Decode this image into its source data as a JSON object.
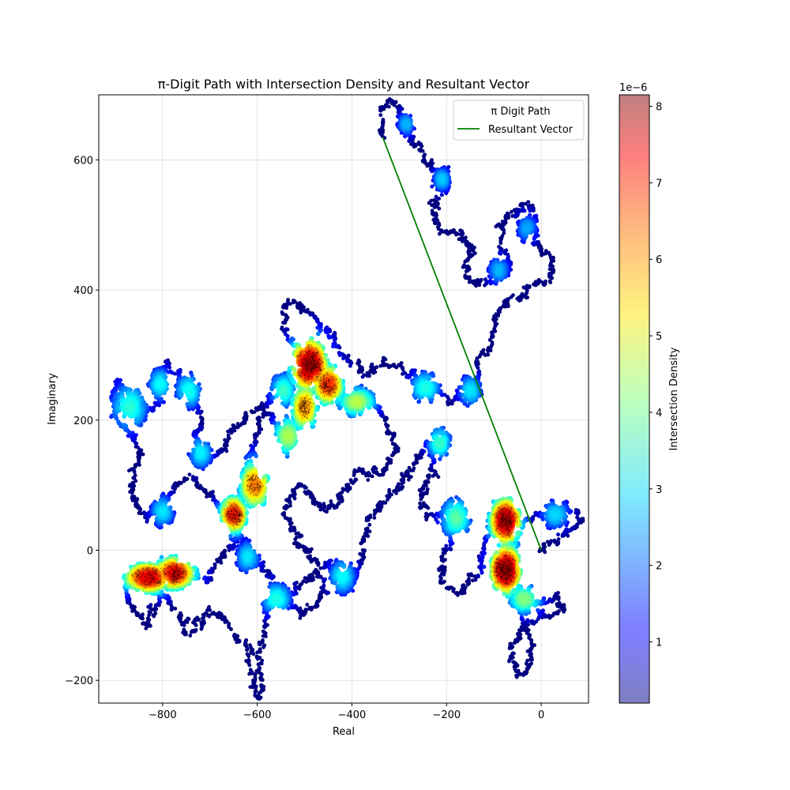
{
  "chart_data": {
    "type": "scatter",
    "title": "π-Digit Path with Intersection Density and Resultant Vector",
    "xlabel": "Real",
    "ylabel": "Imaginary",
    "xlim": [
      -935,
      100
    ],
    "ylim": [
      -235,
      700
    ],
    "xticks": [
      -800,
      -600,
      -400,
      -200,
      0
    ],
    "xtick_labels": [
      "−800",
      "−600",
      "−400",
      "−200",
      "0"
    ],
    "yticks": [
      -200,
      0,
      200,
      400,
      600
    ],
    "ytick_labels": [
      "−200",
      "0",
      "200",
      "400",
      "600"
    ],
    "grid": true,
    "legend": {
      "placement": "top-right",
      "entries": [
        "π Digit Path",
        "Resultant Vector"
      ]
    },
    "colorbar": {
      "label": "Intersection Density",
      "multiplier": "1e−6",
      "range": [
        0.2,
        8.15
      ],
      "ticks": [
        1,
        2,
        3,
        4,
        5,
        6,
        7,
        8
      ],
      "tick_labels": [
        "1",
        "2",
        "3",
        "4",
        "5",
        "6",
        "7",
        "8"
      ],
      "colormap": "jet"
    },
    "resultant_vector": {
      "name": "Resultant Vector",
      "color": "#008000",
      "start": [
        -335,
        635
      ],
      "end": [
        0,
        0
      ]
    },
    "path": {
      "name": "π Digit Path",
      "start": [
        -335,
        635
      ],
      "end": [
        0,
        0
      ],
      "waypoints": [
        [
          -335,
          635
        ],
        [
          -340,
          678
        ],
        [
          -310,
          690
        ],
        [
          -295,
          650
        ],
        [
          -270,
          632
        ],
        [
          -250,
          610
        ],
        [
          -230,
          585
        ],
        [
          -205,
          570
        ],
        [
          -210,
          545
        ],
        [
          -235,
          530
        ],
        [
          -225,
          505
        ],
        [
          -190,
          488
        ],
        [
          -155,
          470
        ],
        [
          -140,
          455
        ],
        [
          -160,
          435
        ],
        [
          -150,
          410
        ],
        [
          -120,
          412
        ],
        [
          -85,
          420
        ],
        [
          -62,
          440
        ],
        [
          -80,
          465
        ],
        [
          -90,
          500
        ],
        [
          -58,
          520
        ],
        [
          -28,
          530
        ],
        [
          -12,
          510
        ],
        [
          -15,
          470
        ],
        [
          15,
          455
        ],
        [
          25,
          432
        ],
        [
          5,
          415
        ],
        [
          -25,
          405
        ],
        [
          -60,
          390
        ],
        [
          -75,
          380
        ],
        [
          -95,
          360
        ],
        [
          -105,
          335
        ],
        [
          -120,
          305
        ],
        [
          -135,
          280
        ],
        [
          -140,
          255
        ],
        [
          -165,
          240
        ],
        [
          -190,
          228
        ],
        [
          -215,
          240
        ],
        [
          -245,
          250
        ],
        [
          -270,
          268
        ],
        [
          -300,
          285
        ],
        [
          -330,
          292
        ],
        [
          -355,
          280
        ],
        [
          -375,
          268
        ],
        [
          -400,
          285
        ],
        [
          -425,
          310
        ],
        [
          -445,
          330
        ],
        [
          -470,
          345
        ],
        [
          -495,
          365
        ],
        [
          -530,
          385
        ],
        [
          -545,
          365
        ],
        [
          -540,
          335
        ],
        [
          -515,
          310
        ],
        [
          -490,
          295
        ],
        [
          -465,
          280
        ],
        [
          -445,
          262
        ],
        [
          -430,
          248
        ],
        [
          -410,
          232
        ],
        [
          -385,
          224
        ],
        [
          -355,
          228
        ],
        [
          -335,
          210
        ],
        [
          -320,
          185
        ],
        [
          -310,
          160
        ],
        [
          -325,
          135
        ],
        [
          -345,
          118
        ],
        [
          -370,
          112
        ],
        [
          -390,
          122
        ],
        [
          -410,
          98
        ],
        [
          -425,
          72
        ],
        [
          -455,
          60
        ],
        [
          -485,
          80
        ],
        [
          -505,
          100
        ],
        [
          -525,
          85
        ],
        [
          -540,
          60
        ],
        [
          -530,
          30
        ],
        [
          -510,
          10
        ],
        [
          -490,
          -10
        ],
        [
          -470,
          -35
        ],
        [
          -455,
          -60
        ],
        [
          -470,
          -85
        ],
        [
          -500,
          -95
        ],
        [
          -530,
          -80
        ],
        [
          -555,
          -60
        ],
        [
          -575,
          -80
        ],
        [
          -585,
          -110
        ],
        [
          -590,
          -145
        ],
        [
          -595,
          -180
        ],
        [
          -590,
          -215
        ],
        [
          -600,
          -228
        ],
        [
          -605,
          -190
        ],
        [
          -615,
          -160
        ],
        [
          -635,
          -140
        ],
        [
          -655,
          -120
        ],
        [
          -675,
          -100
        ],
        [
          -700,
          -90
        ],
        [
          -720,
          -110
        ],
        [
          -745,
          -128
        ],
        [
          -760,
          -110
        ],
        [
          -770,
          -90
        ],
        [
          -790,
          -75
        ],
        [
          -810,
          -65
        ],
        [
          -830,
          -60
        ],
        [
          -850,
          -50
        ],
        [
          -870,
          -40
        ],
        [
          -880,
          -55
        ],
        [
          -860,
          -95
        ],
        [
          -835,
          -115
        ],
        [
          -820,
          -95
        ],
        [
          -800,
          -60
        ],
        [
          -775,
          -40
        ],
        [
          -745,
          -30
        ],
        [
          -720,
          -40
        ],
        [
          -700,
          -35
        ],
        [
          -680,
          -18
        ],
        [
          -660,
          5
        ],
        [
          -640,
          30
        ],
        [
          -660,
          55
        ],
        [
          -680,
          70
        ],
        [
          -700,
          85
        ],
        [
          -720,
          98
        ],
        [
          -745,
          110
        ],
        [
          -770,
          100
        ],
        [
          -790,
          80
        ],
        [
          -810,
          60
        ],
        [
          -835,
          48
        ],
        [
          -855,
          70
        ],
        [
          -865,
          100
        ],
        [
          -860,
          125
        ],
        [
          -845,
          150
        ],
        [
          -860,
          175
        ],
        [
          -880,
          195
        ],
        [
          -900,
          215
        ],
        [
          -905,
          240
        ],
        [
          -890,
          262
        ],
        [
          -870,
          250
        ],
        [
          -850,
          230
        ],
        [
          -830,
          215
        ],
        [
          -805,
          228
        ],
        [
          -795,
          255
        ],
        [
          -810,
          278
        ],
        [
          -790,
          290
        ],
        [
          -765,
          268
        ],
        [
          -745,
          245
        ],
        [
          -730,
          225
        ],
        [
          -715,
          200
        ],
        [
          -735,
          175
        ],
        [
          -720,
          150
        ],
        [
          -700,
          140
        ],
        [
          -680,
          150
        ],
        [
          -665,
          170
        ],
        [
          -645,
          185
        ],
        [
          -625,
          200
        ],
        [
          -605,
          215
        ],
        [
          -585,
          225
        ],
        [
          -570,
          210
        ],
        [
          -560,
          190
        ],
        [
          -540,
          175
        ],
        [
          -525,
          165
        ],
        [
          -510,
          190
        ],
        [
          -495,
          215
        ],
        [
          -490,
          240
        ],
        [
          -500,
          260
        ],
        [
          -520,
          275
        ],
        [
          -540,
          260
        ],
        [
          -555,
          240
        ],
        [
          -575,
          225
        ],
        [
          -590,
          205
        ],
        [
          -600,
          180
        ],
        [
          -610,
          155
        ],
        [
          -620,
          130
        ],
        [
          -625,
          105
        ],
        [
          -635,
          80
        ],
        [
          -645,
          60
        ],
        [
          -655,
          40
        ],
        [
          -640,
          20
        ],
        [
          -615,
          0
        ],
        [
          -595,
          -20
        ],
        [
          -575,
          -40
        ],
        [
          -560,
          -60
        ],
        [
          -540,
          -75
        ],
        [
          -515,
          -60
        ],
        [
          -495,
          -45
        ],
        [
          -470,
          -30
        ],
        [
          -445,
          -20
        ],
        [
          -425,
          -40
        ],
        [
          -410,
          -60
        ],
        [
          -395,
          -45
        ],
        [
          -385,
          -20
        ],
        [
          -380,
          5
        ],
        [
          -370,
          30
        ],
        [
          -355,
          50
        ],
        [
          -340,
          70
        ],
        [
          -320,
          85
        ],
        [
          -300,
          95
        ],
        [
          -285,
          110
        ],
        [
          -270,
          130
        ],
        [
          -250,
          150
        ],
        [
          -235,
          165
        ],
        [
          -225,
          140
        ],
        [
          -230,
          115
        ],
        [
          -245,
          95
        ],
        [
          -255,
          75
        ],
        [
          -240,
          60
        ],
        [
          -220,
          55
        ],
        [
          -195,
          60
        ],
        [
          -180,
          40
        ],
        [
          -190,
          15
        ],
        [
          -205,
          -5
        ],
        [
          -215,
          -30
        ],
        [
          -200,
          -55
        ],
        [
          -180,
          -70
        ],
        [
          -160,
          -60
        ],
        [
          -140,
          -40
        ],
        [
          -130,
          -15
        ],
        [
          -120,
          10
        ],
        [
          -110,
          35
        ],
        [
          -100,
          60
        ],
        [
          -90,
          75
        ],
        [
          -80,
          60
        ],
        [
          -72,
          40
        ],
        [
          -66,
          20
        ],
        [
          -72,
          0
        ],
        [
          -80,
          -20
        ],
        [
          -85,
          -40
        ],
        [
          -75,
          -60
        ],
        [
          -55,
          -72
        ],
        [
          -35,
          -80
        ],
        [
          -10,
          -85
        ],
        [
          10,
          -80
        ],
        [
          30,
          -70
        ],
        [
          45,
          -85
        ],
        [
          30,
          -100
        ],
        [
          5,
          -100
        ],
        [
          -20,
          -110
        ],
        [
          -45,
          -125
        ],
        [
          -60,
          -145
        ],
        [
          -65,
          -170
        ],
        [
          -50,
          -195
        ],
        [
          -30,
          -180
        ],
        [
          -25,
          -150
        ],
        [
          -30,
          -120
        ],
        [
          -40,
          -95
        ],
        [
          -55,
          -80
        ],
        [
          -65,
          -55
        ],
        [
          -70,
          -30
        ],
        [
          -62,
          -5
        ],
        [
          -50,
          15
        ],
        [
          -35,
          30
        ],
        [
          -20,
          45
        ],
        [
          0,
          55
        ],
        [
          20,
          60
        ],
        [
          45,
          65
        ],
        [
          70,
          60
        ],
        [
          85,
          50
        ],
        [
          75,
          35
        ],
        [
          55,
          30
        ],
        [
          35,
          20
        ],
        [
          15,
          10
        ],
        [
          0,
          0
        ]
      ],
      "density_peaks": [
        {
          "x": -490,
          "y": 285,
          "sx": 30,
          "sy": 32,
          "v": 8.0
        },
        {
          "x": -450,
          "y": 255,
          "sx": 25,
          "sy": 25,
          "v": 6.8
        },
        {
          "x": -500,
          "y": 220,
          "sx": 22,
          "sy": 30,
          "v": 6.0
        },
        {
          "x": -535,
          "y": 175,
          "sx": 25,
          "sy": 25,
          "v": 4.5
        },
        {
          "x": -390,
          "y": 228,
          "sx": 32,
          "sy": 18,
          "v": 4.6
        },
        {
          "x": -830,
          "y": -42,
          "sx": 40,
          "sy": 18,
          "v": 7.4
        },
        {
          "x": -775,
          "y": -35,
          "sx": 35,
          "sy": 20,
          "v": 7.2
        },
        {
          "x": -650,
          "y": 55,
          "sx": 22,
          "sy": 22,
          "v": 7.0
        },
        {
          "x": -605,
          "y": 100,
          "sx": 25,
          "sy": 30,
          "v": 6.2
        },
        {
          "x": -75,
          "y": 45,
          "sx": 25,
          "sy": 28,
          "v": 7.9
        },
        {
          "x": -75,
          "y": -30,
          "sx": 25,
          "sy": 30,
          "v": 8.1
        },
        {
          "x": -35,
          "y": -75,
          "sx": 28,
          "sy": 18,
          "v": 4.2
        },
        {
          "x": -180,
          "y": 50,
          "sx": 25,
          "sy": 25,
          "v": 3.9
        },
        {
          "x": -215,
          "y": 165,
          "sx": 20,
          "sy": 20,
          "v": 3.6
        },
        {
          "x": -870,
          "y": 220,
          "sx": 30,
          "sy": 30,
          "v": 3.5
        },
        {
          "x": -745,
          "y": 245,
          "sx": 22,
          "sy": 22,
          "v": 3.3
        },
        {
          "x": -805,
          "y": 255,
          "sx": 20,
          "sy": 20,
          "v": 3.2
        },
        {
          "x": -720,
          "y": 150,
          "sx": 20,
          "sy": 20,
          "v": 3.1
        },
        {
          "x": -800,
          "y": 60,
          "sx": 20,
          "sy": 20,
          "v": 3.0
        },
        {
          "x": -560,
          "y": -75,
          "sx": 25,
          "sy": 20,
          "v": 3.4
        },
        {
          "x": -420,
          "y": -40,
          "sx": 22,
          "sy": 22,
          "v": 3.2
        },
        {
          "x": -545,
          "y": 245,
          "sx": 22,
          "sy": 22,
          "v": 3.6
        },
        {
          "x": -245,
          "y": 250,
          "sx": 25,
          "sy": 20,
          "v": 3.4
        },
        {
          "x": -150,
          "y": 245,
          "sx": 20,
          "sy": 20,
          "v": 3.0
        },
        {
          "x": -210,
          "y": 570,
          "sx": 15,
          "sy": 15,
          "v": 2.8
        },
        {
          "x": -285,
          "y": 655,
          "sx": 15,
          "sy": 15,
          "v": 2.6
        },
        {
          "x": -90,
          "y": 430,
          "sx": 18,
          "sy": 18,
          "v": 2.6
        },
        {
          "x": -30,
          "y": 495,
          "sx": 18,
          "sy": 18,
          "v": 2.5
        },
        {
          "x": 30,
          "y": 55,
          "sx": 25,
          "sy": 18,
          "v": 2.9
        },
        {
          "x": -620,
          "y": -10,
          "sx": 20,
          "sy": 20,
          "v": 3.0
        }
      ]
    }
  }
}
